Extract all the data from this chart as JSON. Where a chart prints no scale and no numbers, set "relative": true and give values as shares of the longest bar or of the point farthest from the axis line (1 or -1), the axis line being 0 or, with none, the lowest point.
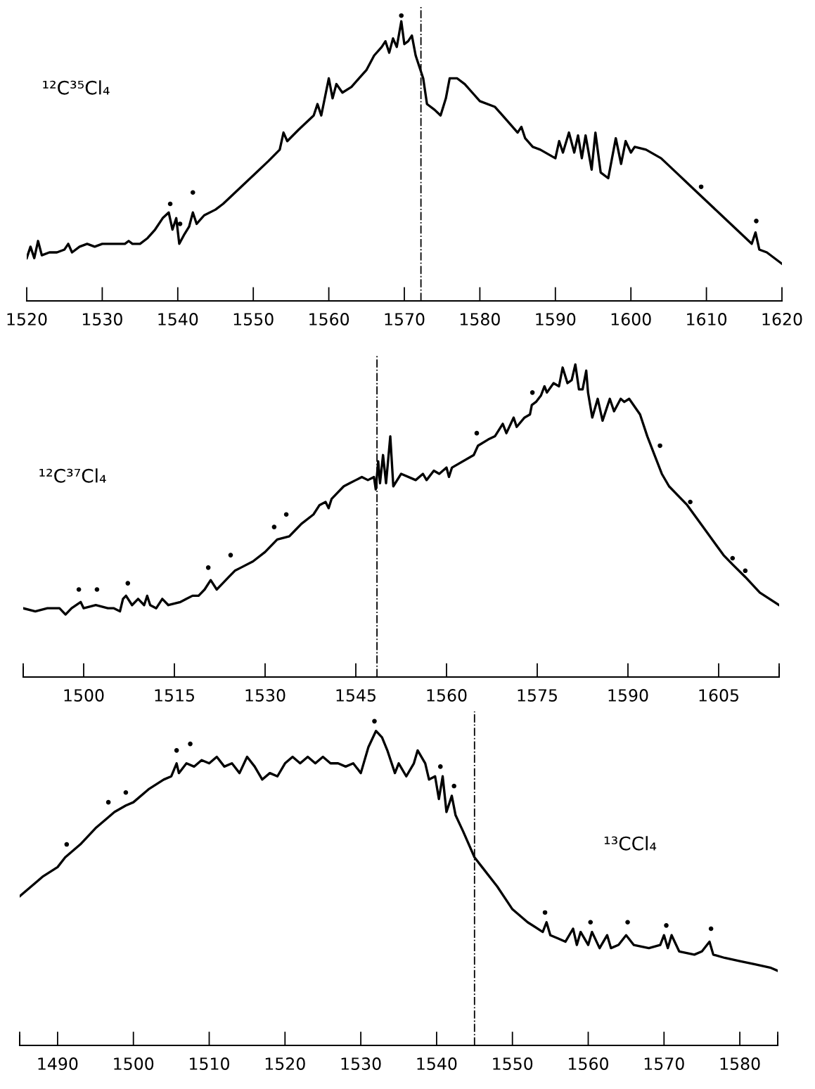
{
  "chart_data": [
    {
      "type": "line",
      "relative": true,
      "tick_labels": "x",
      "xlim": [
        1520,
        1620
      ],
      "xticks": [
        1520,
        1530,
        1540,
        1550,
        1560,
        1570,
        1580,
        1590,
        1600,
        1610,
        1620
      ],
      "annotations": [
        "¹²C³⁵Cl₄"
      ],
      "ref_lines": [
        {
          "axis": "x",
          "value": 1572.2,
          "color": "#000000",
          "line_style": "dashdot"
        }
      ],
      "series": [
        {
          "color": "#000000",
          "line_style": "solid",
          "marker": "none",
          "x": [
            1520,
            1520.5,
            1521,
            1521.5,
            1522,
            1523,
            1524,
            1525,
            1525.5,
            1526,
            1527,
            1528,
            1529,
            1530,
            1531,
            1532,
            1533,
            1533.5,
            1534,
            1535,
            1536,
            1537,
            1538,
            1538.8,
            1539.3,
            1539.8,
            1540.2,
            1540.8,
            1541.5,
            1542,
            1542.5,
            1543.5,
            1545,
            1546,
            1548,
            1550,
            1552,
            1553.5,
            1554,
            1554.5,
            1556,
            1558,
            1558.5,
            1559,
            1560,
            1560.5,
            1561,
            1561.8,
            1563,
            1564,
            1565,
            1566,
            1567,
            1567.5,
            1568,
            1568.5,
            1569,
            1569.6,
            1570,
            1570.5,
            1571,
            1571.5,
            1572,
            1572.5,
            1573,
            1574,
            1574.8,
            1575.5,
            1576,
            1577,
            1578,
            1579,
            1580,
            1582,
            1583,
            1584,
            1585,
            1585.5,
            1586,
            1587,
            1588,
            1590,
            1590.5,
            1591,
            1591.8,
            1592.5,
            1593,
            1593.5,
            1594,
            1594.8,
            1595.3,
            1596,
            1597,
            1598,
            1598.7,
            1599.3,
            1600,
            1600.5,
            1602,
            1604,
            1606,
            1608,
            1610,
            1612,
            1614,
            1616,
            1616.5,
            1617,
            1618,
            1620
          ],
          "values": [
            0.15,
            0.19,
            0.15,
            0.21,
            0.16,
            0.17,
            0.17,
            0.18,
            0.2,
            0.17,
            0.19,
            0.2,
            0.19,
            0.2,
            0.2,
            0.2,
            0.2,
            0.21,
            0.2,
            0.2,
            0.22,
            0.25,
            0.29,
            0.31,
            0.25,
            0.29,
            0.2,
            0.23,
            0.26,
            0.31,
            0.27,
            0.3,
            0.32,
            0.34,
            0.39,
            0.44,
            0.49,
            0.53,
            0.59,
            0.56,
            0.6,
            0.65,
            0.69,
            0.65,
            0.78,
            0.71,
            0.76,
            0.73,
            0.75,
            0.78,
            0.81,
            0.86,
            0.89,
            0.91,
            0.87,
            0.92,
            0.89,
            0.98,
            0.9,
            0.91,
            0.93,
            0.86,
            0.82,
            0.78,
            0.69,
            0.67,
            0.65,
            0.71,
            0.78,
            0.78,
            0.76,
            0.73,
            0.7,
            0.68,
            0.65,
            0.62,
            0.59,
            0.61,
            0.57,
            0.54,
            0.53,
            0.5,
            0.56,
            0.52,
            0.59,
            0.52,
            0.58,
            0.5,
            0.58,
            0.46,
            0.59,
            0.45,
            0.43,
            0.57,
            0.48,
            0.56,
            0.52,
            0.54,
            0.53,
            0.5,
            0.45,
            0.4,
            0.35,
            0.3,
            0.25,
            0.2,
            0.24,
            0.18,
            0.17,
            0.13
          ]
        },
        {
          "type": "scatter",
          "color": "#000000",
          "marker": "circle",
          "x": [
            1539,
            1540.3,
            1542,
            1569.6,
            1609.3,
            1616.6
          ],
          "values": [
            0.34,
            0.27,
            0.38,
            1.0,
            0.4,
            0.28
          ]
        }
      ]
    },
    {
      "type": "line",
      "relative": true,
      "tick_labels": "x",
      "xlim": [
        1490,
        1615
      ],
      "xticks": [
        {
          "value": 1490,
          "label": null
        },
        1500,
        1515,
        1530,
        1545,
        1560,
        1575,
        1590,
        1605,
        {
          "value": 1615,
          "label": null
        }
      ],
      "annotations": [
        "¹²C³⁷Cl₄"
      ],
      "ref_lines": [
        {
          "axis": "x",
          "value": 1548.5,
          "color": "#000000",
          "line_style": "dashdot"
        }
      ],
      "series": [
        {
          "color": "#000000",
          "line_style": "solid",
          "marker": "none",
          "x": [
            1490,
            1492,
            1494,
            1496,
            1497,
            1498,
            1499.5,
            1500,
            1502,
            1504,
            1505,
            1506,
            1506.5,
            1507,
            1508,
            1509,
            1510,
            1510.5,
            1511,
            1512,
            1513,
            1514,
            1516,
            1517,
            1518,
            1519,
            1520,
            1521,
            1522,
            1523,
            1524,
            1525,
            1526,
            1528,
            1530,
            1532,
            1534,
            1535,
            1536,
            1538,
            1539,
            1540,
            1540.5,
            1541,
            1542,
            1543,
            1544,
            1545,
            1546,
            1547,
            1548,
            1548.3,
            1548.7,
            1549,
            1549.5,
            1550,
            1550.7,
            1551.2,
            1552.5,
            1554.9,
            1556.1,
            1556.7,
            1557.9,
            1558.8,
            1560.0,
            1560.4,
            1560.9,
            1564.5,
            1565.2,
            1566.9,
            1568.0,
            1569.3,
            1569.9,
            1571.1,
            1571.6,
            1572.9,
            1573.8,
            1574.1,
            1574.8,
            1575.6,
            1576.2,
            1576.6,
            1577.7,
            1578.6,
            1579.2,
            1580.0,
            1580.7,
            1581.3,
            1581.9,
            1582.5,
            1583.1,
            1583.4,
            1584.1,
            1585.0,
            1585.8,
            1587.0,
            1587.7,
            1588.8,
            1589.4,
            1590.2,
            1592.0,
            1593.2,
            1594.4,
            1595.6,
            1596.8,
            1599.8,
            1602.8,
            1605.8,
            1607.3,
            1609.4,
            1611.8,
            1615.0
          ],
          "values": [
            0.22,
            0.21,
            0.22,
            0.22,
            0.2,
            0.22,
            0.24,
            0.22,
            0.23,
            0.22,
            0.22,
            0.21,
            0.25,
            0.26,
            0.23,
            0.25,
            0.23,
            0.26,
            0.23,
            0.22,
            0.25,
            0.23,
            0.24,
            0.25,
            0.26,
            0.26,
            0.28,
            0.31,
            0.28,
            0.3,
            0.32,
            0.34,
            0.35,
            0.37,
            0.4,
            0.44,
            0.45,
            0.47,
            0.49,
            0.52,
            0.55,
            0.56,
            0.54,
            0.57,
            0.59,
            0.61,
            0.62,
            0.63,
            0.64,
            0.63,
            0.64,
            0.6,
            0.69,
            0.62,
            0.71,
            0.62,
            0.77,
            0.61,
            0.65,
            0.63,
            0.65,
            0.63,
            0.66,
            0.65,
            0.67,
            0.64,
            0.67,
            0.71,
            0.74,
            0.76,
            0.77,
            0.81,
            0.78,
            0.83,
            0.8,
            0.83,
            0.84,
            0.87,
            0.88,
            0.9,
            0.93,
            0.91,
            0.94,
            0.93,
            0.99,
            0.94,
            0.95,
            1.0,
            0.92,
            0.92,
            0.98,
            0.91,
            0.83,
            0.89,
            0.82,
            0.89,
            0.85,
            0.89,
            0.88,
            0.89,
            0.84,
            0.77,
            0.71,
            0.65,
            0.61,
            0.55,
            0.47,
            0.39,
            0.36,
            0.32,
            0.27,
            0.23
          ]
        },
        {
          "type": "scatter",
          "color": "#000000",
          "marker": "circle",
          "x": [
            1499.2,
            1502.2,
            1507.3,
            1520.6,
            1524.3,
            1531.5,
            1533.5,
            1565.0,
            1574.2,
            1595.3,
            1600.3,
            1607.3,
            1609.4
          ],
          "values": [
            0.28,
            0.28,
            0.3,
            0.35,
            0.39,
            0.48,
            0.52,
            0.78,
            0.91,
            0.74,
            0.56,
            0.38,
            0.34
          ]
        }
      ]
    },
    {
      "type": "line",
      "relative": true,
      "tick_labels": "x",
      "xlim": [
        1485,
        1585
      ],
      "xticks": [
        {
          "value": 1485,
          "label": null
        },
        1490,
        1500,
        1510,
        1520,
        1530,
        1540,
        1550,
        1560,
        1570,
        1580,
        {
          "value": 1585,
          "label": null
        }
      ],
      "annotations": [
        "¹³CCl₄"
      ],
      "ref_lines": [
        {
          "axis": "x",
          "value": 1545,
          "color": "#000000",
          "line_style": "dashdot"
        }
      ],
      "series": [
        {
          "color": "#000000",
          "line_style": "solid",
          "marker": "none",
          "x": [
            1485,
            1487,
            1488,
            1490,
            1491,
            1493,
            1495,
            1496.5,
            1497.5,
            1499,
            1500,
            1502,
            1504,
            1505,
            1505.7,
            1506,
            1507,
            1508,
            1509,
            1510,
            1511,
            1512,
            1513,
            1514,
            1515,
            1516,
            1517,
            1518,
            1519,
            1520,
            1521,
            1522,
            1523,
            1524,
            1525,
            1526,
            1527,
            1528,
            1529,
            1530,
            1531,
            1532,
            1532.8,
            1533.5,
            1534.5,
            1535,
            1536,
            1537,
            1537.5,
            1538.5,
            1539,
            1539.8,
            1540.3,
            1540.8,
            1541.3,
            1542,
            1542.5,
            1543.5,
            1545,
            1546,
            1548,
            1550,
            1552,
            1554,
            1554.5,
            1555,
            1556,
            1557,
            1558,
            1558.5,
            1559,
            1560,
            1560.5,
            1561.5,
            1562.5,
            1563,
            1564,
            1565,
            1566,
            1568,
            1569.5,
            1570,
            1570.5,
            1571,
            1572,
            1574,
            1575,
            1576,
            1576.5,
            1578,
            1580,
            1582,
            1584,
            1585
          ],
          "values": [
            0.46,
            0.5,
            0.52,
            0.55,
            0.58,
            0.62,
            0.67,
            0.7,
            0.72,
            0.74,
            0.75,
            0.79,
            0.82,
            0.83,
            0.87,
            0.84,
            0.87,
            0.86,
            0.88,
            0.87,
            0.89,
            0.86,
            0.87,
            0.84,
            0.89,
            0.86,
            0.82,
            0.84,
            0.83,
            0.87,
            0.89,
            0.87,
            0.89,
            0.87,
            0.89,
            0.87,
            0.87,
            0.86,
            0.87,
            0.84,
            0.92,
            0.97,
            0.95,
            0.91,
            0.84,
            0.87,
            0.83,
            0.87,
            0.91,
            0.87,
            0.82,
            0.83,
            0.76,
            0.83,
            0.72,
            0.77,
            0.71,
            0.66,
            0.58,
            0.55,
            0.49,
            0.42,
            0.38,
            0.35,
            0.38,
            0.34,
            0.33,
            0.32,
            0.36,
            0.31,
            0.35,
            0.31,
            0.35,
            0.3,
            0.34,
            0.3,
            0.31,
            0.34,
            0.31,
            0.3,
            0.31,
            0.34,
            0.3,
            0.34,
            0.29,
            0.28,
            0.29,
            0.32,
            0.28,
            0.27,
            0.26,
            0.25,
            0.24,
            0.23
          ]
        },
        {
          "type": "scatter",
          "color": "#000000",
          "marker": "circle",
          "x": [
            1491.2,
            1496.7,
            1499,
            1505.7,
            1507.5,
            1531.8,
            1540.5,
            1542.3,
            1554.3,
            1560.3,
            1565.2,
            1570.3,
            1576.2
          ],
          "values": [
            0.62,
            0.75,
            0.78,
            0.91,
            0.93,
            1.0,
            0.86,
            0.8,
            0.41,
            0.38,
            0.38,
            0.37,
            0.36
          ]
        }
      ]
    }
  ]
}
